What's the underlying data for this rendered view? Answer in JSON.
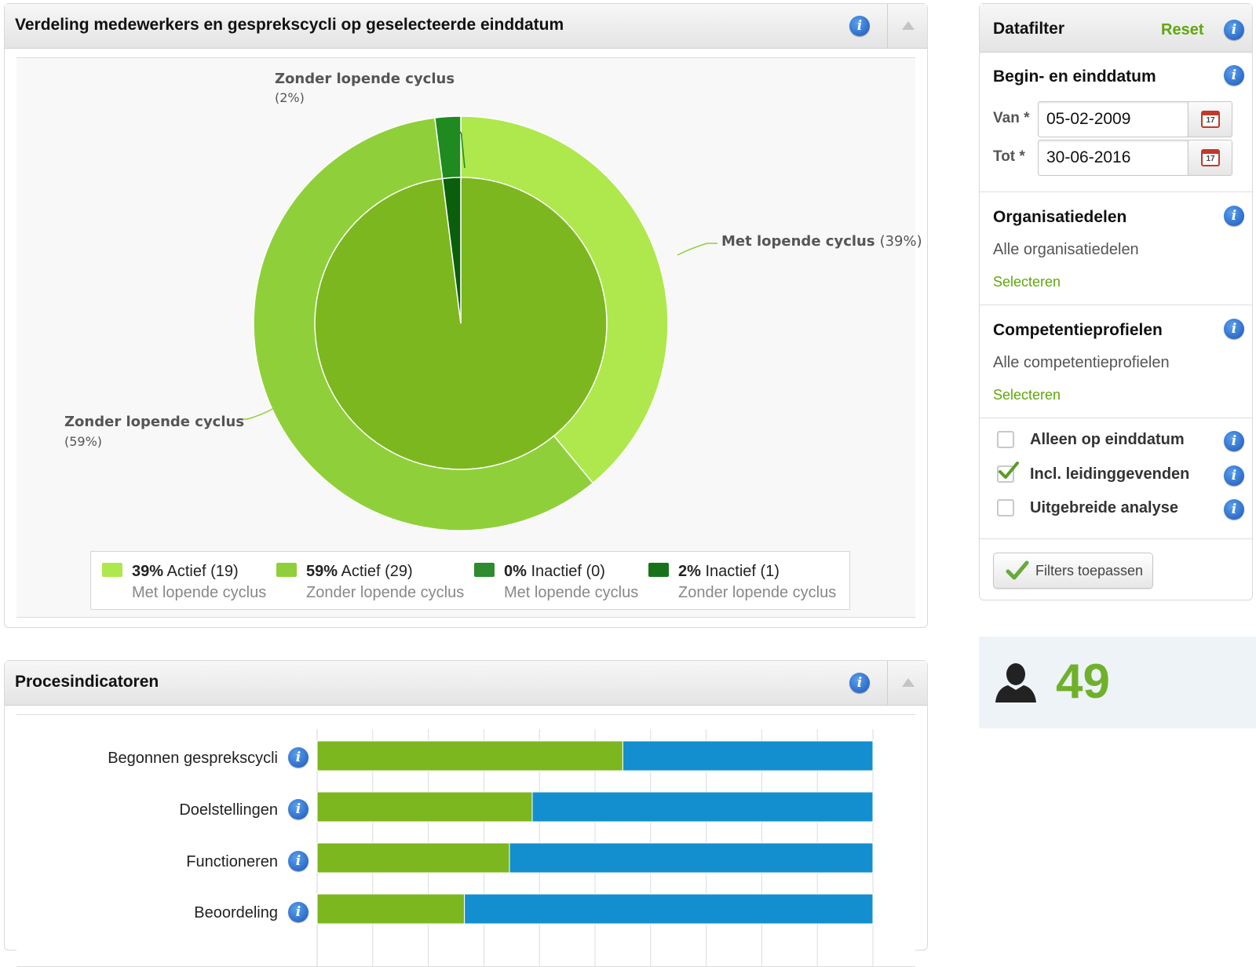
{
  "distribution_panel": {
    "title": "Verdeling medewerkers en gesprekscycli op geselecteerde einddatum",
    "chart_data": {
      "type": "pie",
      "outer_ring": [
        {
          "label": "Met lopende cyclus",
          "percent": 39,
          "pct_text": "(39%)",
          "color": "#aee84d"
        },
        {
          "label": "Zonder lopende cyclus",
          "percent": 59,
          "pct_text": "(59%)",
          "color": "#8fd03a"
        },
        {
          "label": "Zonder lopende cyclus",
          "percent": 2,
          "pct_text": "(2%)",
          "color": "#1f8a1f"
        }
      ],
      "inner_pie": [
        {
          "label": "Actief",
          "percent": 98,
          "color": "#7cb71f"
        },
        {
          "label": "Inactief",
          "percent": 2,
          "color": "#0b5e0b"
        }
      ]
    },
    "legend": [
      {
        "pct": "39%",
        "status": "Actief",
        "count": "(19)",
        "sub": "Met lopende cyclus",
        "color": "#aee84d"
      },
      {
        "pct": "59%",
        "status": "Actief",
        "count": "(29)",
        "sub": "Zonder lopende cyclus",
        "color": "#8fd03a"
      },
      {
        "pct": "0%",
        "status": "Inactief",
        "count": "(0)",
        "sub": "Met lopende cyclus",
        "color": "#2e8b2e"
      },
      {
        "pct": "2%",
        "status": "Inactief",
        "count": "(1)",
        "sub": "Zonder lopende cyclus",
        "color": "#17731a"
      }
    ]
  },
  "process_panel": {
    "title": "Procesindicatoren",
    "chart_data": {
      "type": "bar",
      "categories": [
        "Begonnen gesprekscycli",
        "Doelstellingen",
        "Functioneren",
        "Beoordeling"
      ],
      "series": [
        {
          "values": [
            55,
            38.7,
            34.6,
            26.5
          ],
          "color": "#7cb71f"
        },
        {
          "values": [
            45,
            61.3,
            65.4,
            73.5
          ],
          "color": "#138fcf"
        }
      ],
      "stacked": true,
      "xlim": [
        0,
        100
      ]
    }
  },
  "sidebar": {
    "title": "Datafilter",
    "reset_label": "Reset",
    "date_section": {
      "title": "Begin- en einddatum",
      "from_label": "Van *",
      "from_value": "05-02-2009",
      "to_label": "Tot *",
      "to_value": "30-06-2016",
      "cal_day": "17"
    },
    "org_section": {
      "title": "Organisatiedelen",
      "value": "Alle organisatiedelen",
      "link": "Selecteren"
    },
    "comp_section": {
      "title": "Competentieprofielen",
      "value": "Alle competentieprofielen",
      "link": "Selecteren"
    },
    "checkboxes": [
      {
        "label": "Alleen op einddatum",
        "checked": false
      },
      {
        "label": "Incl. leidinggevenden",
        "checked": true
      },
      {
        "label": "Uitgebreide analyse",
        "checked": false
      }
    ],
    "apply_label": "Filters toepassen"
  },
  "employee_count": "49",
  "colors": {
    "accent_green": "#5fa80b",
    "bar_green": "#7cb71f",
    "bar_blue": "#138fcf"
  },
  "info_glyph": "i"
}
